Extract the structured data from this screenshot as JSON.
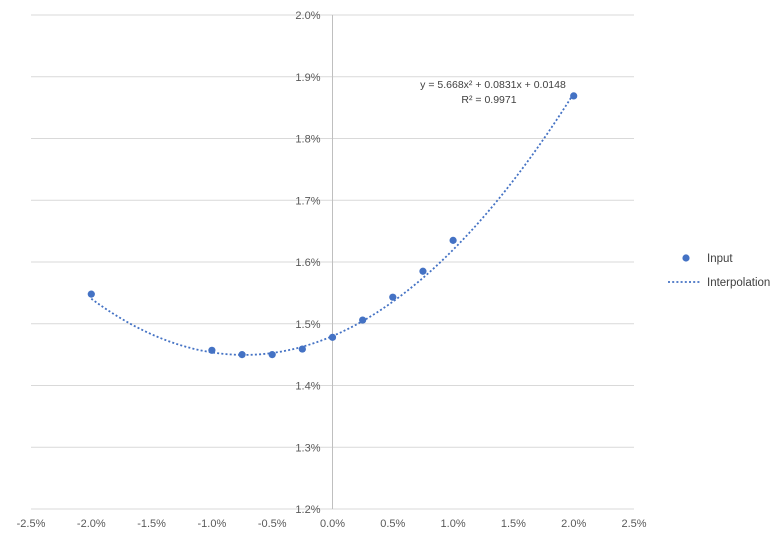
{
  "chart_data": {
    "type": "scatter",
    "xlim": [
      -0.025,
      0.025
    ],
    "ylim": [
      0.012,
      0.02
    ],
    "x_ticks": [
      "-2.5%",
      "-2.0%",
      "-1.5%",
      "-1.0%",
      "-0.5%",
      "0.0%",
      "0.5%",
      "1.0%",
      "1.5%",
      "2.0%",
      "2.5%"
    ],
    "y_ticks": [
      "1.2%",
      "1.3%",
      "1.4%",
      "1.5%",
      "1.6%",
      "1.7%",
      "1.8%",
      "1.9%",
      "2.0%"
    ],
    "grid": true,
    "legend_position": "right",
    "series": [
      {
        "name": "Input",
        "kind": "scatter",
        "color": "#4472C4",
        "x": [
          -0.02,
          -0.01,
          -0.0075,
          -0.005,
          -0.0025,
          0.0,
          0.0025,
          0.005,
          0.0075,
          0.01,
          0.02
        ],
        "y": [
          0.01548,
          0.01457,
          0.0145,
          0.0145,
          0.01459,
          0.01478,
          0.01506,
          0.01543,
          0.01585,
          0.01635,
          0.01869
        ]
      },
      {
        "name": "Interpolation",
        "kind": "trendline",
        "color": "#4472C4",
        "coefficients": {
          "a": 5.668,
          "b": 0.0831,
          "c": 0.0148
        },
        "x_range": [
          -0.02,
          0.02
        ]
      }
    ],
    "annotations": {
      "equation": "y = 5.668x² + 0.0831x + 0.0148",
      "r_squared": "R² = 0.9971"
    }
  }
}
